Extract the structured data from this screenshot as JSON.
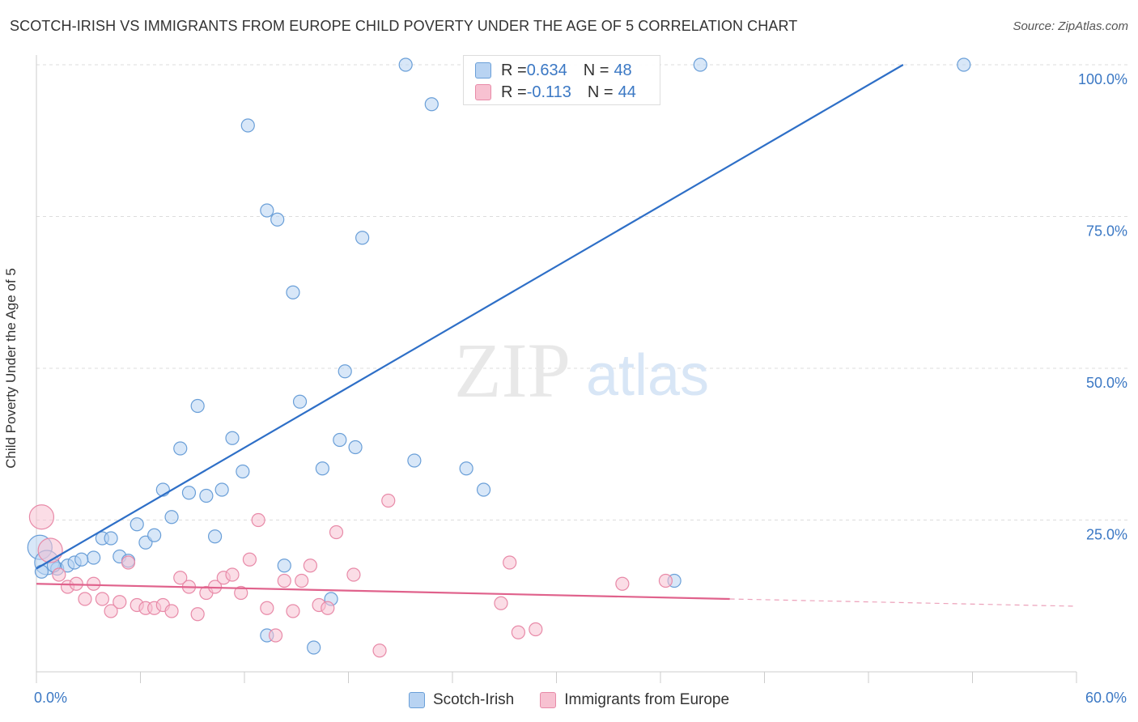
{
  "header": {
    "title": "SCOTCH-IRISH VS IMMIGRANTS FROM EUROPE CHILD POVERTY UNDER THE AGE OF 5 CORRELATION CHART",
    "source": "Source: ZipAtlas.com"
  },
  "watermark": {
    "zip": "ZIP",
    "atlas": "atlas"
  },
  "legend": {
    "series1": {
      "r_label": "R = ",
      "r_value": "0.634",
      "n_label": "N = ",
      "n_value": "48"
    },
    "series2": {
      "r_label": "R = ",
      "r_value": "-0.113",
      "n_label": "N = ",
      "n_value": "44"
    }
  },
  "colors": {
    "blue_fill": "#b8d3f2",
    "blue_stroke": "#6a9fd8",
    "blue_line": "#2e6fc7",
    "pink_fill": "#f7c1d1",
    "pink_stroke": "#e88aa8",
    "pink_line": "#e0628c",
    "axis_label": "#3b78c4",
    "grid": "#dddddd"
  },
  "chart_data": {
    "type": "scatter",
    "title": "SCOTCH-IRISH VS IMMIGRANTS FROM EUROPE CHILD POVERTY UNDER THE AGE OF 5 CORRELATION CHART",
    "xlabel": "",
    "ylabel": "Child Poverty Under the Age of 5",
    "xlim": [
      0,
      60
    ],
    "ylim": [
      0,
      102
    ],
    "x_tick_labels": [
      "0.0%",
      "60.0%"
    ],
    "y_ticks": [
      25,
      50,
      75,
      100
    ],
    "y_tick_labels": [
      "25.0%",
      "50.0%",
      "75.0%",
      "100.0%"
    ],
    "grid": true,
    "legend_position": "bottom",
    "series": [
      {
        "name": "Scotch-Irish",
        "color": "#6a9fd8",
        "trend": {
          "x": [
            0,
            50
          ],
          "y": [
            17,
            100
          ]
        },
        "points": [
          {
            "x": 0.2,
            "y": 20.5,
            "s": 2
          },
          {
            "x": 0.6,
            "y": 18,
            "s": 2
          },
          {
            "x": 1.2,
            "y": 17
          },
          {
            "x": 1.8,
            "y": 17.5
          },
          {
            "x": 2.2,
            "y": 18
          },
          {
            "x": 3.3,
            "y": 18.8
          },
          {
            "x": 3.8,
            "y": 22
          },
          {
            "x": 4.3,
            "y": 22
          },
          {
            "x": 4.8,
            "y": 19
          },
          {
            "x": 5.3,
            "y": 18.3
          },
          {
            "x": 5.8,
            "y": 24.3
          },
          {
            "x": 6.3,
            "y": 21.3
          },
          {
            "x": 6.8,
            "y": 22.5
          },
          {
            "x": 7.3,
            "y": 30
          },
          {
            "x": 7.8,
            "y": 25.5
          },
          {
            "x": 8.3,
            "y": 36.8
          },
          {
            "x": 8.8,
            "y": 29.5
          },
          {
            "x": 9.3,
            "y": 43.8
          },
          {
            "x": 9.8,
            "y": 29
          },
          {
            "x": 10.3,
            "y": 22.3
          },
          {
            "x": 10.7,
            "y": 30
          },
          {
            "x": 11.3,
            "y": 38.5
          },
          {
            "x": 11.9,
            "y": 33
          },
          {
            "x": 12.2,
            "y": 90
          },
          {
            "x": 13.3,
            "y": 6
          },
          {
            "x": 13.3,
            "y": 76
          },
          {
            "x": 13.9,
            "y": 74.5
          },
          {
            "x": 14.3,
            "y": 17.5
          },
          {
            "x": 14.8,
            "y": 62.5
          },
          {
            "x": 15.2,
            "y": 44.5
          },
          {
            "x": 16.0,
            "y": 4
          },
          {
            "x": 16.5,
            "y": 33.5
          },
          {
            "x": 17.0,
            "y": 12
          },
          {
            "x": 17.5,
            "y": 38.2
          },
          {
            "x": 17.8,
            "y": 49.5
          },
          {
            "x": 18.4,
            "y": 37
          },
          {
            "x": 18.8,
            "y": 71.5
          },
          {
            "x": 21.3,
            "y": 100
          },
          {
            "x": 21.8,
            "y": 34.8
          },
          {
            "x": 22.8,
            "y": 93.5
          },
          {
            "x": 24.8,
            "y": 33.5
          },
          {
            "x": 25.8,
            "y": 30
          },
          {
            "x": 36.8,
            "y": 15
          },
          {
            "x": 38.3,
            "y": 100
          },
          {
            "x": 53.5,
            "y": 100
          },
          {
            "x": 0.3,
            "y": 16.5
          },
          {
            "x": 1.0,
            "y": 17.5
          },
          {
            "x": 2.6,
            "y": 18.5
          }
        ]
      },
      {
        "name": "Immigrants from Europe",
        "color": "#e88aa8",
        "trend": {
          "x": [
            0,
            40
          ],
          "y": [
            14.5,
            12
          ]
        },
        "trend_dashed": {
          "x": [
            40,
            60
          ],
          "y": [
            12,
            10.8
          ]
        },
        "points": [
          {
            "x": 0.3,
            "y": 25.5,
            "s": 2
          },
          {
            "x": 0.8,
            "y": 20,
            "s": 2
          },
          {
            "x": 1.3,
            "y": 16
          },
          {
            "x": 1.8,
            "y": 14
          },
          {
            "x": 2.3,
            "y": 14.5
          },
          {
            "x": 2.8,
            "y": 12
          },
          {
            "x": 3.3,
            "y": 14.5
          },
          {
            "x": 3.8,
            "y": 12
          },
          {
            "x": 4.3,
            "y": 10
          },
          {
            "x": 4.8,
            "y": 11.5
          },
          {
            "x": 5.3,
            "y": 18
          },
          {
            "x": 5.8,
            "y": 11
          },
          {
            "x": 6.3,
            "y": 10.5
          },
          {
            "x": 6.8,
            "y": 10.5
          },
          {
            "x": 7.3,
            "y": 11
          },
          {
            "x": 7.8,
            "y": 10
          },
          {
            "x": 8.3,
            "y": 15.5
          },
          {
            "x": 8.8,
            "y": 14
          },
          {
            "x": 9.3,
            "y": 9.5
          },
          {
            "x": 9.8,
            "y": 13
          },
          {
            "x": 10.3,
            "y": 14
          },
          {
            "x": 10.8,
            "y": 15.5
          },
          {
            "x": 11.3,
            "y": 16
          },
          {
            "x": 11.8,
            "y": 13
          },
          {
            "x": 12.3,
            "y": 18.5
          },
          {
            "x": 12.8,
            "y": 25
          },
          {
            "x": 13.3,
            "y": 10.5
          },
          {
            "x": 13.8,
            "y": 6
          },
          {
            "x": 14.3,
            "y": 15
          },
          {
            "x": 14.8,
            "y": 10
          },
          {
            "x": 15.3,
            "y": 15
          },
          {
            "x": 15.8,
            "y": 17.5
          },
          {
            "x": 16.3,
            "y": 11
          },
          {
            "x": 16.8,
            "y": 10.5
          },
          {
            "x": 17.3,
            "y": 23
          },
          {
            "x": 18.3,
            "y": 16
          },
          {
            "x": 19.8,
            "y": 3.5
          },
          {
            "x": 20.3,
            "y": 28.2
          },
          {
            "x": 26.8,
            "y": 11.3
          },
          {
            "x": 27.3,
            "y": 18
          },
          {
            "x": 27.8,
            "y": 6.5
          },
          {
            "x": 28.8,
            "y": 7
          },
          {
            "x": 33.8,
            "y": 14.5
          },
          {
            "x": 36.3,
            "y": 15
          }
        ]
      }
    ]
  },
  "legend_bottom": {
    "series1": "Scotch-Irish",
    "series2": "Immigrants from Europe"
  }
}
